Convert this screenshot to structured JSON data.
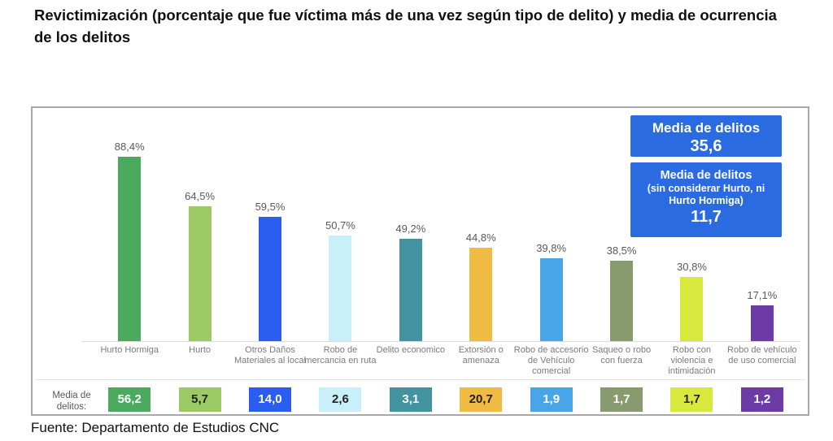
{
  "footer": "Fuente: Departamento de Estudios CNC",
  "media_row_label": "Media de delitos:",
  "callouts": {
    "bg_color": "#2B6BE2",
    "box1": {
      "line1": "Media de delitos",
      "value": "35,6"
    },
    "box2": {
      "line1": "Media de delitos",
      "line2": "(sin considerar Hurto, ni",
      "line3": "Hurto Hormiga)",
      "value": "11,7"
    }
  },
  "chart_data": {
    "type": "bar",
    "title": "Revictimización (porcentaje que fue víctima más de una vez según tipo de delito) y media de ocurrencia de los delitos",
    "categories": [
      "Hurto Hormiga",
      "Hurto",
      "Otros Daños Materiales al local",
      "Robo de mercancia en ruta",
      "Delito economico",
      "Extorsión o amenaza",
      "Robo de accesorio de Vehículo comercial",
      "Saqueo o robo con fuerza",
      "Robo con violencia e intimidación",
      "Robo de vehículo de uso comercial"
    ],
    "series": [
      {
        "name": "Revictimización (porcentaje que fue víctima más de una vez)",
        "values": [
          88.4,
          64.5,
          59.5,
          50.7,
          49.2,
          44.8,
          39.8,
          38.5,
          30.8,
          17.1
        ],
        "labels": [
          "88,4%",
          "64,5%",
          "59,5%",
          "50,7%",
          "49,2%",
          "44,8%",
          "39,8%",
          "38,5%",
          "30,8%",
          "17,1%"
        ]
      },
      {
        "name": "Media de delitos",
        "values": [
          56.2,
          5.7,
          14.0,
          2.6,
          3.1,
          20.7,
          1.9,
          1.7,
          1.7,
          1.2
        ],
        "labels": [
          "56,2",
          "5,7",
          "14,0",
          "2,6",
          "3,1",
          "20,7",
          "1,9",
          "1,7",
          "1,7",
          "1,2"
        ]
      }
    ],
    "annotations": [
      {
        "text": "Media de delitos",
        "value": "35,6"
      },
      {
        "text": "Media de delitos (sin considerar Hurto, ni Hurto Hormiga)",
        "value": "11,7"
      }
    ],
    "bar_colors": [
      "#4BAA5E",
      "#9CCA64",
      "#2B5EF0",
      "#C9F0F8",
      "#42929F",
      "#F0BB42",
      "#47A5E8",
      "#889B6E",
      "#D9E83C",
      "#6C3BA6"
    ],
    "media_text_colors": [
      "#ffffff",
      "#222222",
      "#ffffff",
      "#222222",
      "#ffffff",
      "#222222",
      "#ffffff",
      "#ffffff",
      "#222222",
      "#ffffff"
    ],
    "ylim": [
      0,
      100
    ],
    "grid": false,
    "legend": "none"
  }
}
